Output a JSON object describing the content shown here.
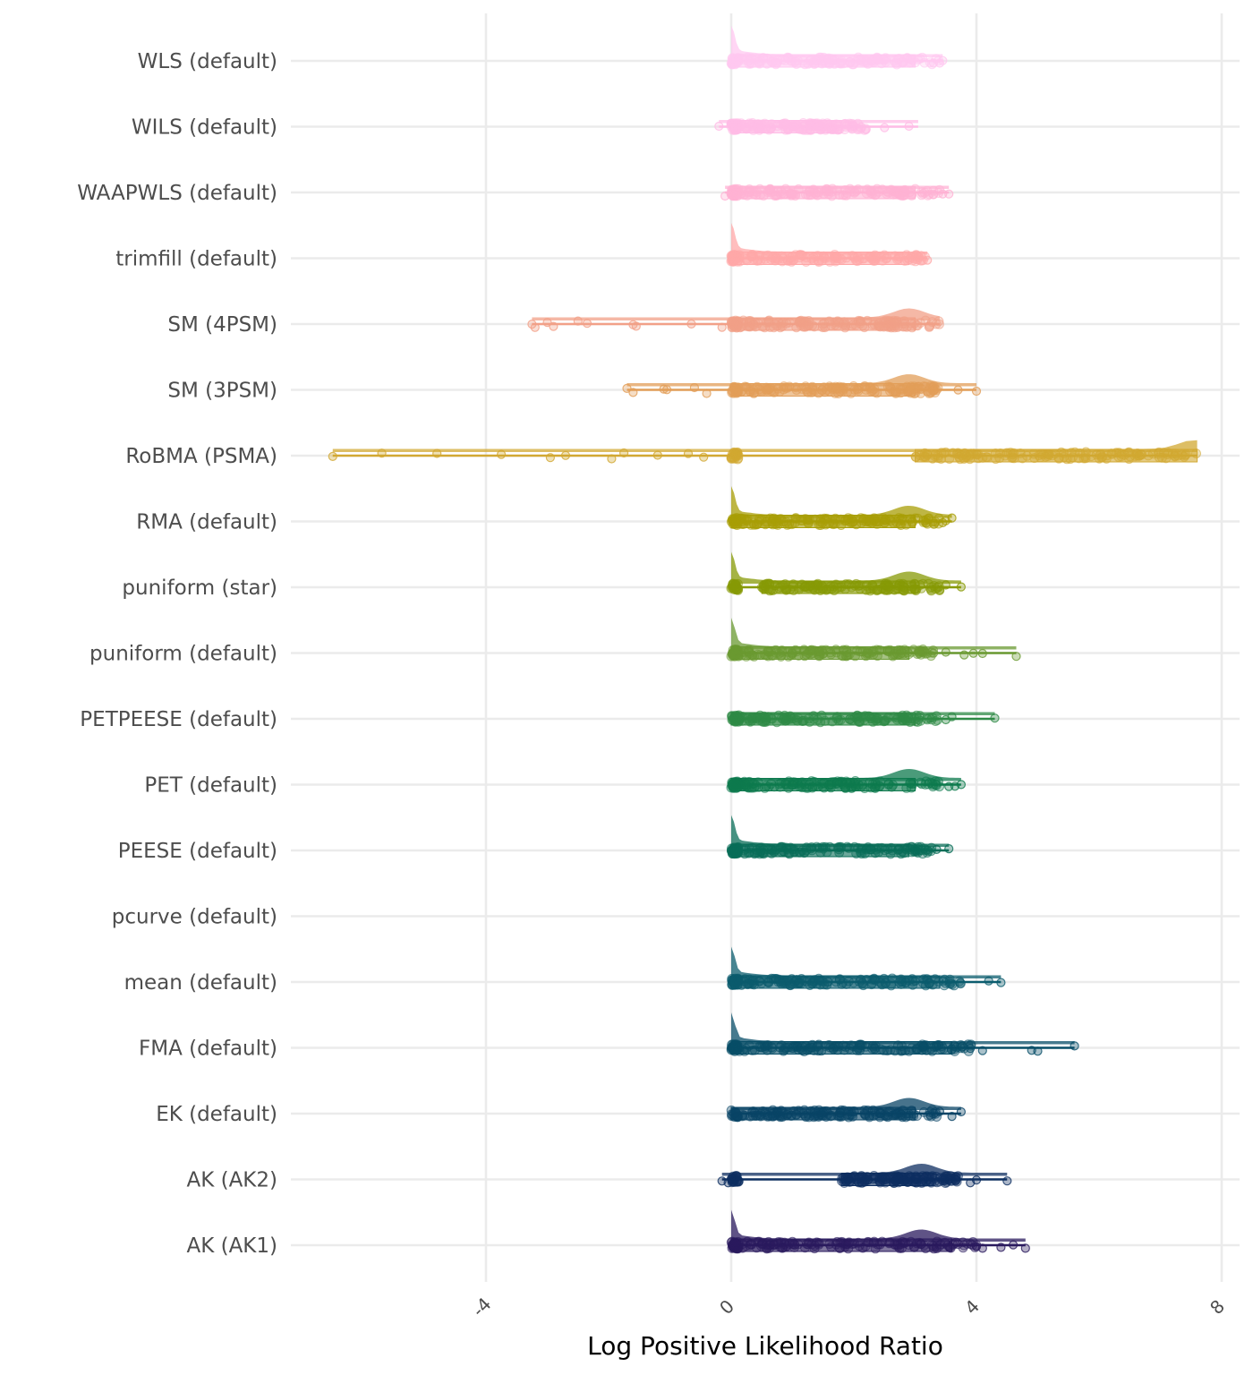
{
  "chart_data": {
    "type": "raincloud",
    "title": "",
    "xlabel": "Log Positive Likelihood Ratio",
    "ylabel": "",
    "xlim": [
      -8.1,
      8.15
    ],
    "x_ticks": [
      -4,
      0,
      4,
      8
    ],
    "x_tick_labels": [
      "-4",
      "0",
      "4",
      "8"
    ],
    "x_tick_rotation_deg": 45,
    "grid": true,
    "legend": "none",
    "categories": [
      "WLS (default)",
      "WILS (default)",
      "WAAPWLS (default)",
      "trimfill (default)",
      "SM (4PSM)",
      "SM (3PSM)",
      "RoBMA (PSMA)",
      "RMA (default)",
      "puniform (star)",
      "puniform (default)",
      "PETPEESE (default)",
      "PET (default)",
      "PEESE (default)",
      "pcurve (default)",
      "mean (default)",
      "FMA (default)",
      "EK (default)",
      "AK (AK2)",
      "AK (AK1)"
    ],
    "series": [
      {
        "name": "WLS (default)",
        "color": "#FFC8F0",
        "min": 0.0,
        "max": 3.45,
        "q1": 0.0,
        "median": 1.6,
        "q3": 3.0,
        "spike_at_zero": true,
        "mode2": null,
        "outliers": [
          3.3,
          3.4,
          3.45
        ]
      },
      {
        "name": "WILS (default)",
        "color": "#FFBCE6",
        "min": -0.2,
        "max": 3.05,
        "q1": 0.0,
        "median": 1.2,
        "q3": 1.8,
        "spike_at_zero": false,
        "mode2": null,
        "outliers": [
          -0.2,
          2.0,
          2.2,
          2.5,
          2.9
        ]
      },
      {
        "name": "WAAPWLS (default)",
        "color": "#FFB2D4",
        "min": -0.1,
        "max": 3.55,
        "q1": 0.0,
        "median": 1.5,
        "q3": 3.0,
        "spike_at_zero": false,
        "mode2": null,
        "outliers": [
          -0.1,
          3.3,
          3.45,
          3.55
        ]
      },
      {
        "name": "trimfill (default)",
        "color": "#FFA8A8",
        "min": 0.0,
        "max": 3.2,
        "q1": 0.0,
        "median": 1.6,
        "q3": 2.9,
        "spike_at_zero": true,
        "mode2": null,
        "outliers": [
          3.1,
          3.2
        ]
      },
      {
        "name": "SM (4PSM)",
        "color": "#F2A088",
        "min": -3.25,
        "max": 3.4,
        "q1": 0.0,
        "median": 1.6,
        "q3": 3.0,
        "spike_at_zero": false,
        "mode2": 2.9,
        "outliers": [
          -3.25,
          -3.2,
          -3.0,
          -2.9,
          -2.5,
          -2.35,
          -1.6,
          -1.55,
          -0.65,
          -0.15
        ]
      },
      {
        "name": "SM (3PSM)",
        "color": "#E29E58",
        "min": -1.7,
        "max": 4.0,
        "q1": 0.0,
        "median": 1.6,
        "q3": 3.0,
        "spike_at_zero": false,
        "mode2": 2.9,
        "outliers": [
          -1.7,
          -1.6,
          -1.1,
          -1.05,
          -0.6,
          -0.4,
          3.7,
          4.0
        ]
      },
      {
        "name": "RoBMA (PSMA)",
        "color": "#D2A832",
        "min": -6.5,
        "max": 7.6,
        "q1": 3.0,
        "median": 4.5,
        "q3": 7.6,
        "spike_at_zero": false,
        "mode2": 7.55,
        "outliers": [
          -6.5,
          -5.7,
          -4.8,
          -3.75,
          -2.95,
          -2.7,
          -1.95,
          -1.75,
          -1.2,
          -0.7,
          -0.45,
          0.0
        ]
      },
      {
        "name": "RMA (default)",
        "color": "#A89E06",
        "min": 0.0,
        "max": 3.6,
        "q1": 0.0,
        "median": 1.8,
        "q3": 3.0,
        "spike_at_zero": true,
        "mode2": 2.9,
        "outliers": [
          3.45,
          3.5,
          3.6
        ]
      },
      {
        "name": "puniform (star)",
        "color": "#879A06",
        "min": 0.0,
        "max": 3.75,
        "q1": 0.5,
        "median": 1.7,
        "q3": 3.0,
        "spike_at_zero": true,
        "mode2": 2.9,
        "outliers": [
          3.4,
          3.5,
          3.75
        ]
      },
      {
        "name": "puniform (default)",
        "color": "#6A9A32",
        "min": 0.0,
        "max": 4.65,
        "q1": 0.0,
        "median": 1.6,
        "q3": 2.9,
        "spike_at_zero": true,
        "mode2": null,
        "outliers": [
          3.3,
          3.5,
          3.8,
          3.95,
          4.1,
          4.65
        ]
      },
      {
        "name": "PETPEESE (default)",
        "color": "#2E8A46",
        "min": 0.0,
        "max": 4.3,
        "q1": 0.0,
        "median": 1.6,
        "q3": 3.0,
        "spike_at_zero": false,
        "mode2": null,
        "outliers": [
          3.5,
          3.6,
          4.3
        ]
      },
      {
        "name": "PET (default)",
        "color": "#0E7A4E",
        "min": 0.0,
        "max": 3.75,
        "q1": 0.0,
        "median": 1.7,
        "q3": 3.0,
        "spike_at_zero": false,
        "mode2": 2.9,
        "outliers": [
          3.55,
          3.65,
          3.75
        ]
      },
      {
        "name": "PEESE (default)",
        "color": "#0A6E58",
        "min": 0.0,
        "max": 3.55,
        "q1": 0.0,
        "median": 1.6,
        "q3": 2.9,
        "spike_at_zero": true,
        "mode2": null,
        "outliers": [
          3.2,
          3.35,
          3.55
        ]
      },
      {
        "name": "pcurve (default)",
        "color": "#0A6666",
        "min": null,
        "max": null,
        "q1": null,
        "median": null,
        "q3": null,
        "spike_at_zero": false,
        "mode2": null,
        "outliers": []
      },
      {
        "name": "mean (default)",
        "color": "#0B5C6E",
        "min": 0.0,
        "max": 4.4,
        "q1": 0.0,
        "median": 1.5,
        "q3": 3.4,
        "spike_at_zero": true,
        "mode2": null,
        "outliers": [
          3.0,
          3.2,
          4.2,
          4.4
        ]
      },
      {
        "name": "FMA (default)",
        "color": "#084E68",
        "min": 0.0,
        "max": 5.6,
        "q1": 0.0,
        "median": 1.4,
        "q3": 3.6,
        "spike_at_zero": true,
        "mode2": null,
        "outliers": [
          3.9,
          4.1,
          4.9,
          5.0,
          5.6
        ]
      },
      {
        "name": "EK (default)",
        "color": "#0A4466",
        "min": 0.0,
        "max": 3.75,
        "q1": 0.0,
        "median": 1.7,
        "q3": 3.0,
        "spike_at_zero": false,
        "mode2": 2.9,
        "outliers": [
          3.4,
          3.6,
          3.75
        ]
      },
      {
        "name": "AK (AK2)",
        "color": "#0D2E60",
        "min": -0.15,
        "max": 4.5,
        "q1": 1.8,
        "median": 2.5,
        "q3": 3.3,
        "spike_at_zero": false,
        "mode2": 3.1,
        "outliers": [
          -0.15,
          -0.05,
          3.9,
          4.0,
          4.5
        ]
      },
      {
        "name": "AK (AK1)",
        "color": "#2A1A5E",
        "min": 0.0,
        "max": 4.8,
        "q1": 0.0,
        "median": 2.8,
        "q3": 3.6,
        "spike_at_zero": true,
        "mode2": 3.1,
        "outliers": [
          4.0,
          4.1,
          4.4,
          4.6,
          4.8
        ]
      }
    ]
  }
}
